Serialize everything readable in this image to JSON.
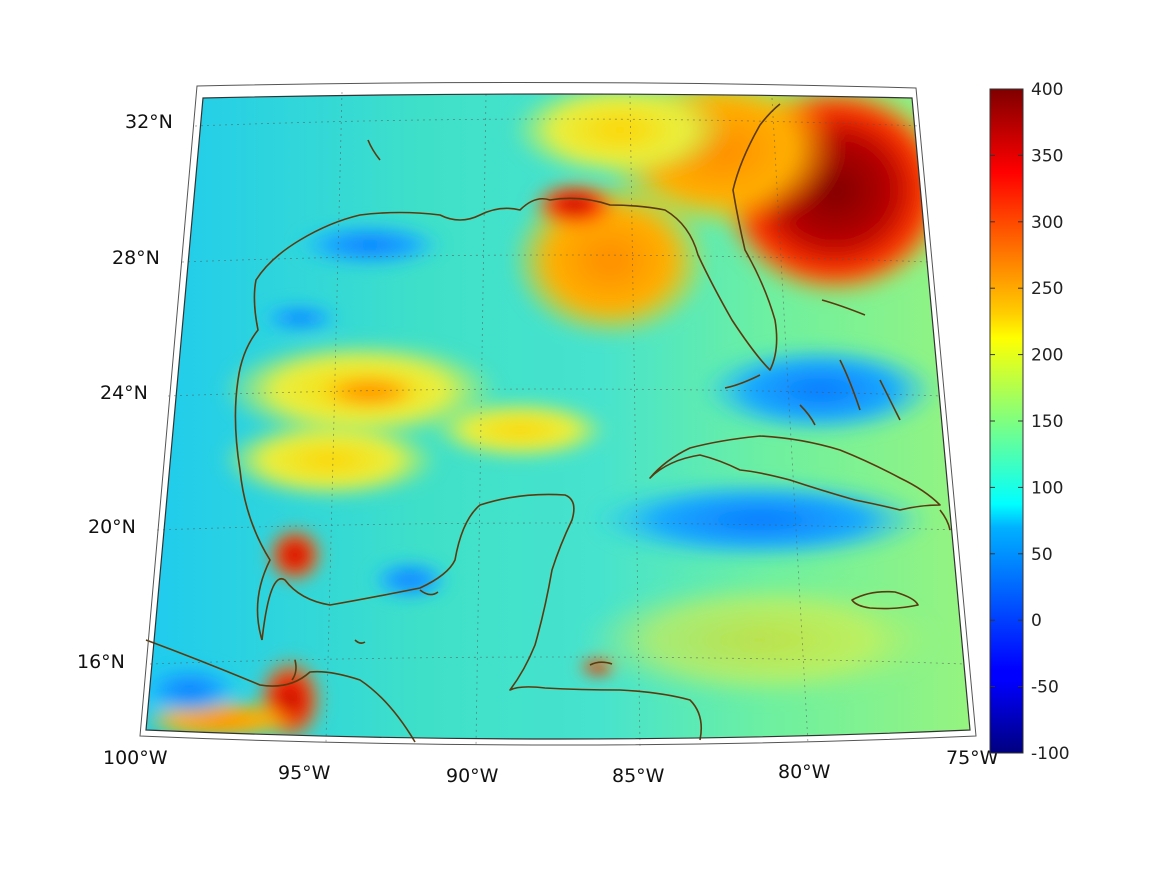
{
  "map": {
    "lat_labels": [
      "32°N",
      "28°N",
      "24°N",
      "20°N",
      "16°N"
    ],
    "lon_labels": [
      "100°W",
      "95°W",
      "90°W",
      "85°W",
      "80°W",
      "75°W"
    ],
    "colors": {
      "coastline": "#5a3a0e",
      "frame": "#333333",
      "grid": "#555555"
    }
  },
  "colorbar": {
    "ticks": [
      "400",
      "350",
      "300",
      "250",
      "200",
      "150",
      "100",
      "50",
      "0",
      "-50",
      "-100"
    ],
    "range": [
      -100,
      400
    ],
    "colormap": "jet"
  }
}
